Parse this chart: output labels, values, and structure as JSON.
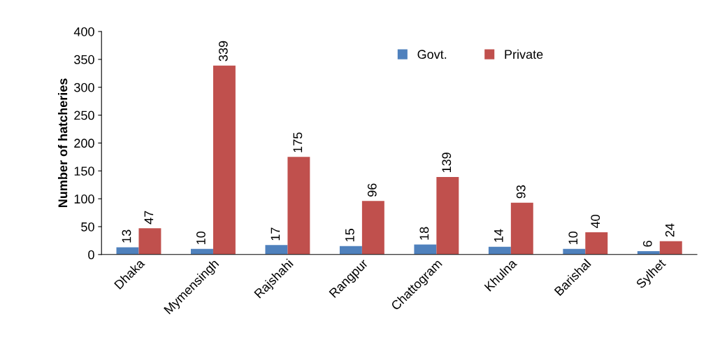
{
  "chart_data": {
    "type": "bar",
    "ylabel": "Number of hatcheries",
    "categories": [
      "Dhaka",
      "Mymensingh",
      "Rajshahi",
      "Rangpur",
      "Chattogram",
      "Khulna",
      "Barishal",
      "Sylhet"
    ],
    "series": [
      {
        "name": "Govt.",
        "color": "#4f81bd",
        "values": [
          13,
          10,
          17,
          15,
          18,
          14,
          10,
          6
        ]
      },
      {
        "name": "Private",
        "color": "#c0504d",
        "values": [
          47,
          339,
          175,
          96,
          139,
          93,
          40,
          24
        ]
      }
    ],
    "ylim": [
      0,
      400
    ],
    "yticks": [
      0,
      50,
      100,
      150,
      200,
      250,
      300,
      350,
      400
    ],
    "data_labels": true,
    "grid": false,
    "legend": "top"
  }
}
